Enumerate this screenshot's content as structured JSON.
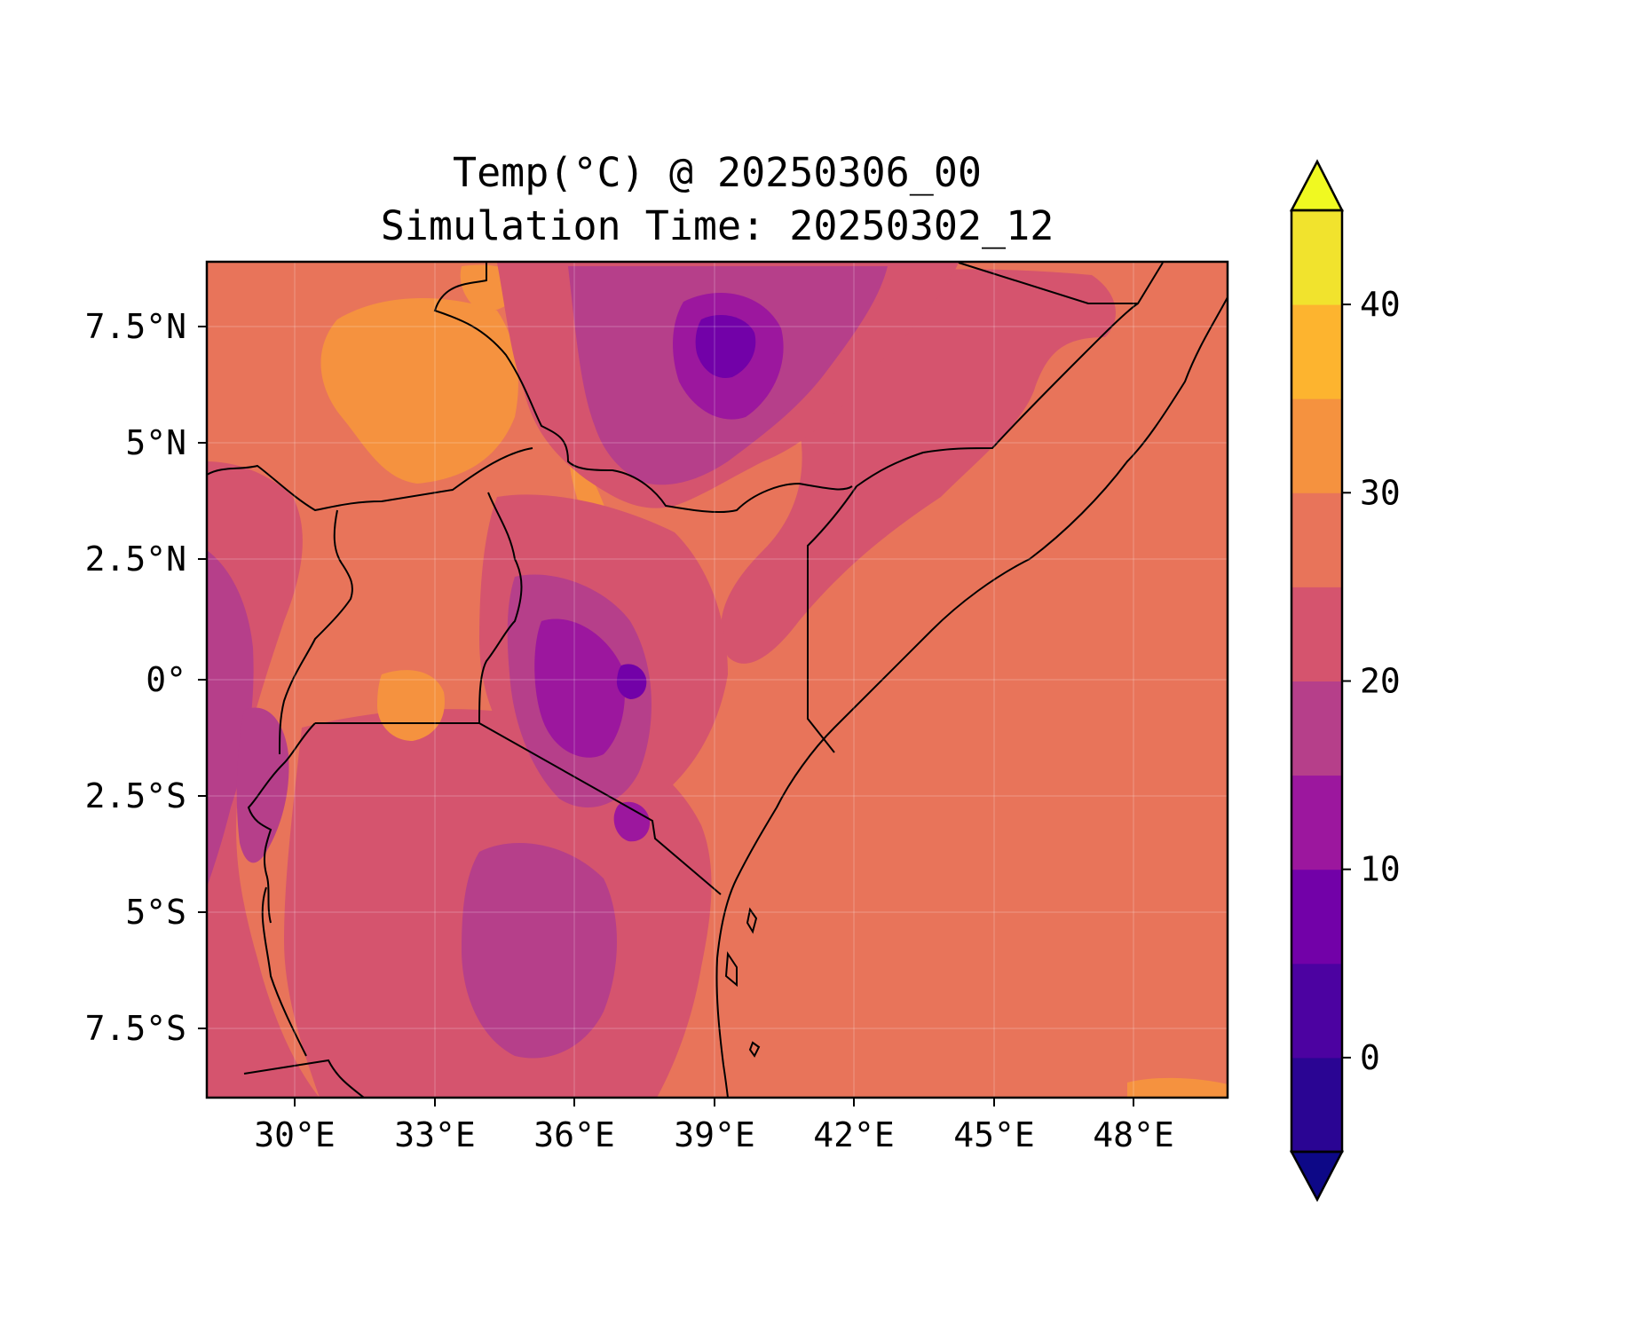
{
  "figure": {
    "title_line1": "Temp(°C) @ 20250306_00",
    "title_line2": "Simulation Time: 20250302_12"
  },
  "map": {
    "variable": "temperature",
    "units": "°C",
    "extent": {
      "lon": [
        27.5,
        49.5
      ],
      "lat": [
        -9,
        9
      ]
    },
    "x_ticks": [
      "30°E",
      "33°E",
      "36°E",
      "39°E",
      "42°E",
      "45°E",
      "48°E"
    ],
    "x_tick_values": [
      30,
      33,
      36,
      39,
      42,
      45,
      48
    ],
    "y_ticks": [
      "7.5°N",
      "5°N",
      "2.5°N",
      "0°",
      "2.5°S",
      "5°S",
      "7.5°S"
    ],
    "y_tick_values": [
      7.5,
      5,
      2.5,
      0,
      -2.5,
      -5,
      -7.5
    ],
    "colors": {
      "ocean": "#e8745a",
      "lowland": "#e8745a",
      "warm": "#f5923f",
      "mild": "#d5546e",
      "cool": "#b63f8a",
      "cold": "#9c179e",
      "coldest": "#7201a8",
      "border": "#000000"
    }
  },
  "colorbar": {
    "levels": [
      -5,
      0,
      5,
      10,
      15,
      20,
      25,
      30,
      35,
      40,
      45
    ],
    "colors": [
      "#2a0593",
      "#4c02a1",
      "#7201a8",
      "#9c179e",
      "#b63f8a",
      "#d5546e",
      "#e8745a",
      "#f5923f",
      "#fdb42f",
      "#f1e32d"
    ],
    "extend_low_color": "#0d0887",
    "extend_high_color": "#f0f921",
    "tick_labels": [
      "0",
      "10",
      "20",
      "30",
      "40"
    ],
    "tick_values": [
      0,
      10,
      20,
      30,
      40
    ]
  }
}
